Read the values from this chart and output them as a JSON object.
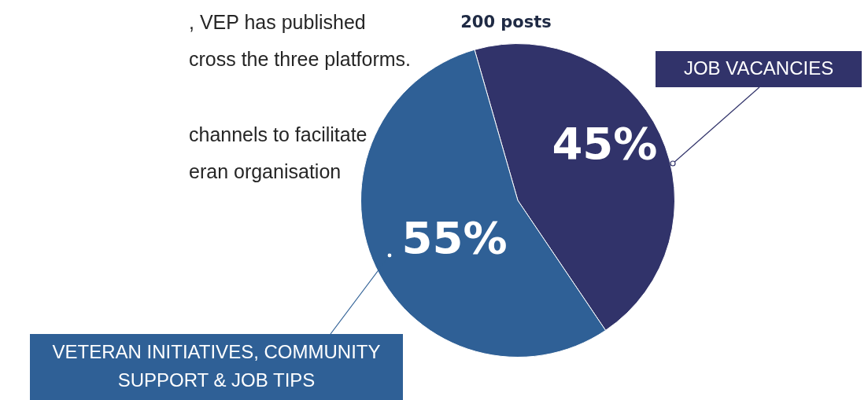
{
  "chart_data": {
    "type": "pie",
    "title": "200 posts",
    "categories": [
      "JOB VACANCIES",
      "VETERAN INITIATIVES, COMMUNITY SUPPORT & JOB TIPS"
    ],
    "values": [
      45,
      55
    ],
    "colors": [
      "#31336a",
      "#2f6096"
    ],
    "value_labels": [
      "45%",
      "55%"
    ],
    "legend": false,
    "annotations": [
      ", VEP has published",
      "cross the three platforms.",
      "channels to facilitate",
      "eran organisation"
    ]
  }
}
